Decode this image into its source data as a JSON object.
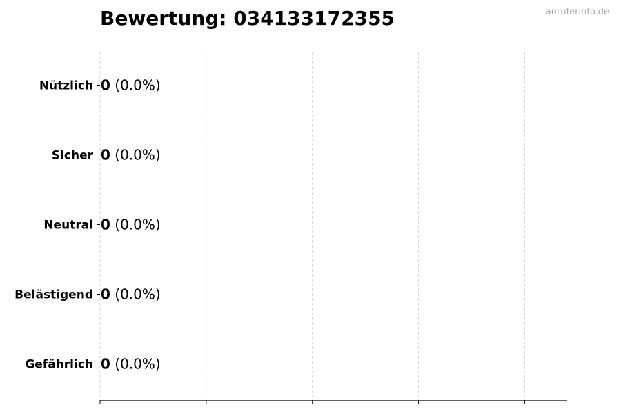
{
  "title": "Bewertung: 034133172355",
  "watermark": "anruferinfo.de",
  "chart_data": {
    "type": "bar",
    "orientation": "horizontal",
    "title": "Bewertung: 034133172355",
    "categories": [
      "Nützlich",
      "Sicher",
      "Neutral",
      "Belästigend",
      "Gefährlich"
    ],
    "values": [
      0,
      0,
      0,
      0,
      0
    ],
    "percent_labels": [
      "(0.0%)",
      "(0.0%)",
      "(0.0%)",
      "(0.0%)",
      "(0.0%)"
    ],
    "value_labels": [
      "0",
      "0",
      "0",
      "0",
      "0"
    ],
    "xlabel": "",
    "ylabel": "",
    "xlim": [
      0,
      4.4
    ],
    "xticks": [
      0,
      1,
      2,
      3,
      4
    ],
    "xtick_labels_shown": false,
    "grid": "vertical dashed",
    "bar_edge_color": "#000000",
    "grid_color": "#cccccc"
  }
}
